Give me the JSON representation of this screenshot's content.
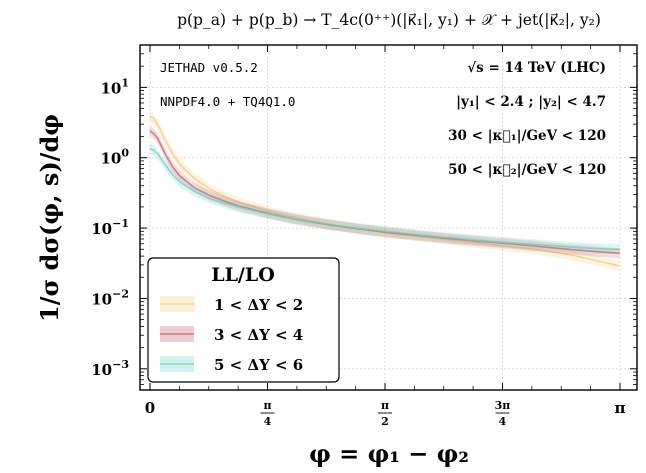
{
  "chart_data": {
    "type": "line",
    "title": "p(p_a) + p(p_b) → T_4c(0⁺⁺)(|κ⃗₁|, y₁) + 𝒳 + jet(|κ⃗₂|, y₂)",
    "xlabel": "φ = φ₁ − φ₂",
    "ylabel": "1/σ dσ(φ, s)/dφ",
    "xlim": [
      0,
      3.14159
    ],
    "ylim": [
      0.0005,
      40
    ],
    "yscale": "log",
    "grid": true,
    "legend": {
      "title": "LL/LO",
      "position": "bottom-left"
    },
    "x_ticks": [
      {
        "value": 0,
        "label": "0"
      },
      {
        "value": 0.7854,
        "num": "π",
        "den": "4"
      },
      {
        "value": 1.5708,
        "num": "π",
        "den": "2"
      },
      {
        "value": 2.3562,
        "num": "3π",
        "den": "4"
      },
      {
        "value": 3.14159,
        "label": "π"
      }
    ],
    "y_ticks": [
      {
        "value": 10,
        "base": "10",
        "exp": "1"
      },
      {
        "value": 1,
        "base": "10",
        "exp": "0"
      },
      {
        "value": 0.1,
        "base": "10",
        "exp": "−1"
      },
      {
        "value": 0.01,
        "base": "10",
        "exp": "−2"
      },
      {
        "value": 0.001,
        "base": "10",
        "exp": "−3"
      }
    ],
    "annotations": {
      "code": "JETHAD v0.5.2",
      "pdf": "NNPDF4.0 + TQ4Q1.0",
      "energy": "√s = 14 TeV (LHC)",
      "rapidity": "|y₁| < 2.4 ;  |y₂| < 4.7",
      "kappa1": "30 < |κ⃗₁|/GeV < 120",
      "kappa2": "50 < |κ⃗₂|/GeV < 120"
    },
    "x": [
      0,
      0.02,
      0.05,
      0.1,
      0.15,
      0.2,
      0.3,
      0.4,
      0.5,
      0.6,
      0.8,
      1.0,
      1.2,
      1.4,
      1.6,
      1.8,
      2.0,
      2.2,
      2.4,
      2.6,
      2.8,
      3.0,
      3.14
    ],
    "series": [
      {
        "name": "1 < ΔY < 2",
        "color": "#f4c97a",
        "values": [
          3.9,
          3.7,
          3.0,
          1.8,
          1.15,
          0.8,
          0.5,
          0.36,
          0.28,
          0.23,
          0.172,
          0.137,
          0.113,
          0.097,
          0.085,
          0.076,
          0.068,
          0.061,
          0.055,
          0.049,
          0.042,
          0.034,
          0.029
        ]
      },
      {
        "name": "3 < ΔY < 4",
        "color": "#c85a6a",
        "values": [
          2.4,
          2.25,
          1.9,
          1.15,
          0.75,
          0.55,
          0.37,
          0.29,
          0.24,
          0.205,
          0.16,
          0.13,
          0.111,
          0.097,
          0.086,
          0.078,
          0.071,
          0.065,
          0.06,
          0.055,
          0.05,
          0.046,
          0.044
        ]
      },
      {
        "name": "5 < ΔY < 6",
        "color": "#6ecfc0",
        "values": [
          1.35,
          1.3,
          1.15,
          0.8,
          0.58,
          0.45,
          0.33,
          0.265,
          0.225,
          0.196,
          0.157,
          0.13,
          0.112,
          0.099,
          0.089,
          0.08,
          0.073,
          0.067,
          0.062,
          0.058,
          0.054,
          0.051,
          0.05
        ]
      }
    ]
  }
}
